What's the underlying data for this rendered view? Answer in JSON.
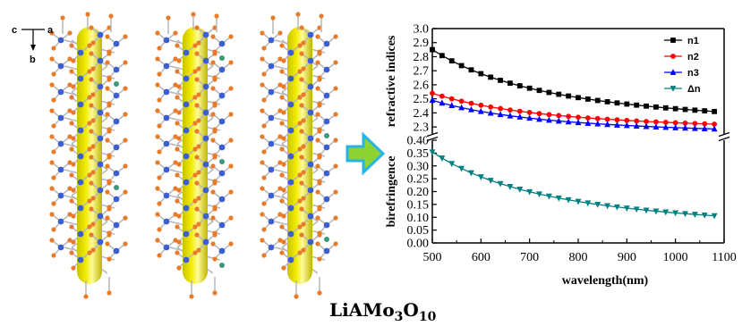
{
  "compound": {
    "base": "LiAMo",
    "sub1": "3",
    "mid": "O",
    "sub2": "10"
  },
  "axes_indicator": {
    "c": "c",
    "a": "a",
    "b": "b"
  },
  "colors": {
    "rod": "#f2ec00",
    "atom_mo": "#3b5fd0",
    "atom_o": "#e87b2a",
    "atom_li": "#3a9a7a",
    "bond": "#b7b7b7",
    "arrow_fill": "#27b3e6",
    "arrow_inner": "#8ed334"
  },
  "chart_data": [
    {
      "type": "line",
      "panel": "top",
      "ylabel": "refractive indices",
      "xlim": [
        500,
        1100
      ],
      "ylim": [
        2.25,
        3.0
      ],
      "yticks": [
        "2.3",
        "2.4",
        "2.5",
        "2.6",
        "2.7",
        "2.8",
        "2.9",
        "3.0"
      ],
      "ytick_values": [
        2.3,
        2.4,
        2.5,
        2.6,
        2.7,
        2.8,
        2.9,
        3.0
      ],
      "legend_position": "top-right",
      "series": [
        {
          "name": "n1",
          "color": "#000000",
          "marker": "square",
          "x_start": 500,
          "x_step": 20,
          "n_points": 30,
          "A": 2.29,
          "B": 140000
        },
        {
          "name": "n2",
          "color": "#ff0000",
          "marker": "circle",
          "x_start": 500,
          "x_step": 20,
          "n_points": 30,
          "A": 2.26,
          "B": 70000
        },
        {
          "name": "n3",
          "color": "#0000ff",
          "marker": "triangle-up",
          "x_start": 500,
          "x_step": 20,
          "n_points": 30,
          "A": 2.23,
          "B": 65000
        }
      ]
    },
    {
      "type": "line",
      "panel": "bottom",
      "xlabel": "wavelength(nm)",
      "ylabel": "birefringence",
      "xlim": [
        500,
        1100
      ],
      "ylim": [
        0.0,
        0.4
      ],
      "xticks": [
        "500",
        "600",
        "700",
        "800",
        "900",
        "1000",
        "1100"
      ],
      "xtick_values": [
        500,
        600,
        700,
        800,
        900,
        1000,
        1100
      ],
      "yticks": [
        "0.00",
        "0.05",
        "0.10",
        "0.15",
        "0.20",
        "0.25",
        "0.30",
        "0.35",
        "0.40"
      ],
      "ytick_values": [
        0.0,
        0.05,
        0.1,
        0.15,
        0.2,
        0.25,
        0.3,
        0.35,
        0.4
      ],
      "series": [
        {
          "name": "Δn",
          "color": "#008080",
          "marker": "triangle-down",
          "x_start": 500,
          "x_step": 20,
          "n_points": 30,
          "A": 0.038,
          "B": 79000
        }
      ]
    }
  ]
}
